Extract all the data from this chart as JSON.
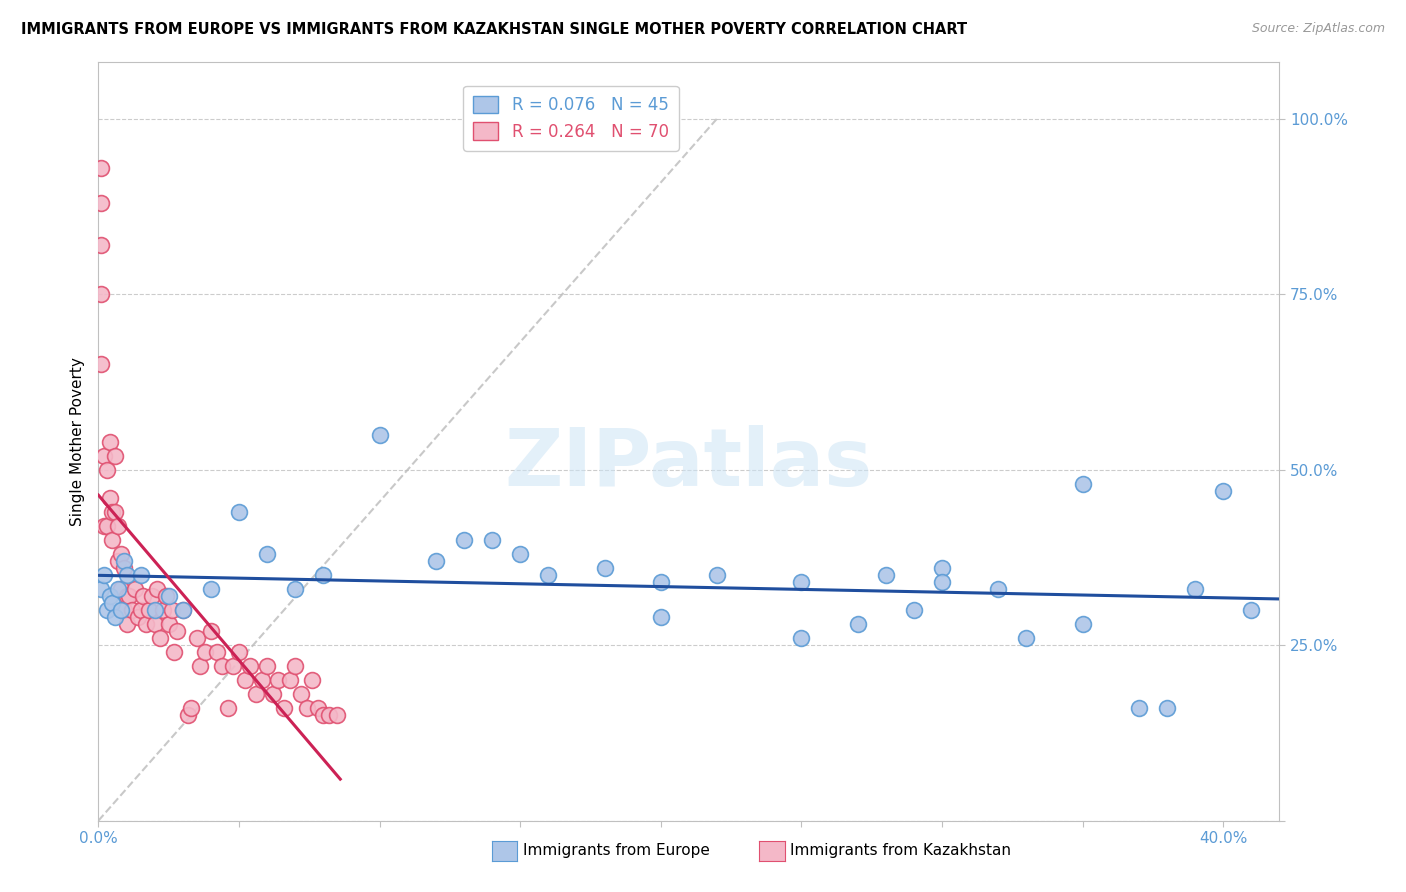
{
  "title": "IMMIGRANTS FROM EUROPE VS IMMIGRANTS FROM KAZAKHSTAN SINGLE MOTHER POVERTY CORRELATION CHART",
  "source": "Source: ZipAtlas.com",
  "ylabel": "Single Mother Poverty",
  "axis_color": "#5b9bd5",
  "grid_color": "#cccccc",
  "watermark": "ZIPatlas",
  "europe_color": "#aec6e8",
  "europe_edge": "#5b9bd5",
  "kazakh_color": "#f4b8c8",
  "kazakh_edge": "#e05070",
  "blue_line_color": "#1f4e9e",
  "pink_line_color": "#cc2255",
  "diag_line_color": "#bbbbbb",
  "europe_x": [
    0.001,
    0.002,
    0.003,
    0.004,
    0.005,
    0.006,
    0.007,
    0.008,
    0.009,
    0.01,
    0.015,
    0.02,
    0.025,
    0.03,
    0.04,
    0.05,
    0.06,
    0.07,
    0.08,
    0.1,
    0.12,
    0.13,
    0.14,
    0.15,
    0.16,
    0.18,
    0.2,
    0.22,
    0.25,
    0.27,
    0.28,
    0.29,
    0.3,
    0.32,
    0.33,
    0.35,
    0.37,
    0.38,
    0.39,
    0.4,
    0.41,
    0.35,
    0.3,
    0.25,
    0.2
  ],
  "europe_y": [
    0.33,
    0.35,
    0.3,
    0.32,
    0.31,
    0.29,
    0.33,
    0.3,
    0.37,
    0.35,
    0.35,
    0.3,
    0.32,
    0.3,
    0.33,
    0.44,
    0.38,
    0.33,
    0.35,
    0.55,
    0.37,
    0.4,
    0.4,
    0.38,
    0.35,
    0.36,
    0.34,
    0.35,
    0.34,
    0.28,
    0.35,
    0.3,
    0.36,
    0.33,
    0.26,
    0.28,
    0.16,
    0.16,
    0.33,
    0.47,
    0.3,
    0.48,
    0.34,
    0.26,
    0.29
  ],
  "kazakh_x": [
    0.001,
    0.001,
    0.001,
    0.001,
    0.001,
    0.002,
    0.002,
    0.003,
    0.003,
    0.004,
    0.004,
    0.005,
    0.005,
    0.006,
    0.006,
    0.007,
    0.007,
    0.008,
    0.008,
    0.009,
    0.009,
    0.01,
    0.01,
    0.011,
    0.012,
    0.013,
    0.014,
    0.015,
    0.016,
    0.017,
    0.018,
    0.019,
    0.02,
    0.021,
    0.022,
    0.023,
    0.024,
    0.025,
    0.026,
    0.027,
    0.028,
    0.03,
    0.032,
    0.033,
    0.035,
    0.036,
    0.038,
    0.04,
    0.042,
    0.044,
    0.046,
    0.048,
    0.05,
    0.052,
    0.054,
    0.056,
    0.058,
    0.06,
    0.062,
    0.064,
    0.066,
    0.068,
    0.07,
    0.072,
    0.074,
    0.076,
    0.078,
    0.08,
    0.082,
    0.085
  ],
  "kazakh_y": [
    0.93,
    0.88,
    0.82,
    0.75,
    0.65,
    0.52,
    0.42,
    0.5,
    0.42,
    0.54,
    0.46,
    0.44,
    0.4,
    0.52,
    0.44,
    0.37,
    0.42,
    0.33,
    0.38,
    0.3,
    0.36,
    0.32,
    0.28,
    0.32,
    0.3,
    0.33,
    0.29,
    0.3,
    0.32,
    0.28,
    0.3,
    0.32,
    0.28,
    0.33,
    0.26,
    0.3,
    0.32,
    0.28,
    0.3,
    0.24,
    0.27,
    0.3,
    0.15,
    0.16,
    0.26,
    0.22,
    0.24,
    0.27,
    0.24,
    0.22,
    0.16,
    0.22,
    0.24,
    0.2,
    0.22,
    0.18,
    0.2,
    0.22,
    0.18,
    0.2,
    0.16,
    0.2,
    0.22,
    0.18,
    0.16,
    0.2,
    0.16,
    0.15,
    0.15,
    0.15
  ],
  "xlim": [
    0.0,
    0.42
  ],
  "ylim": [
    0.0,
    1.08
  ],
  "x_tick_positions": [
    0.0,
    0.05,
    0.1,
    0.15,
    0.2,
    0.25,
    0.3,
    0.35,
    0.4
  ],
  "x_tick_labels": [
    "0.0%",
    "",
    "",
    "",
    "",
    "",
    "",
    "",
    "40.0%"
  ],
  "y_tick_positions": [
    0.0,
    0.25,
    0.5,
    0.75,
    1.0
  ],
  "y_tick_labels": [
    "",
    "25.0%",
    "50.0%",
    "75.0%",
    "100.0%"
  ]
}
